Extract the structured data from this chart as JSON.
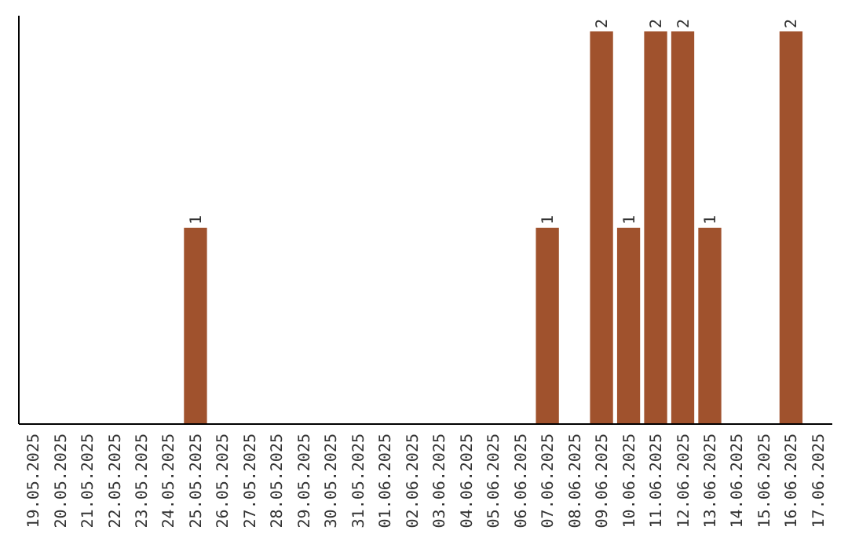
{
  "chart_data": {
    "type": "bar",
    "categories": [
      "19.05.2025",
      "20.05.2025",
      "21.05.2025",
      "22.05.2025",
      "23.05.2025",
      "24.05.2025",
      "25.05.2025",
      "26.05.2025",
      "27.05.2025",
      "28.05.2025",
      "29.05.2025",
      "30.05.2025",
      "31.05.2025",
      "01.06.2025",
      "02.06.2025",
      "03.06.2025",
      "04.06.2025",
      "05.06.2025",
      "06.06.2025",
      "07.06.2025",
      "08.06.2025",
      "09.06.2025",
      "10.06.2025",
      "11.06.2025",
      "12.06.2025",
      "13.06.2025",
      "14.06.2025",
      "15.06.2025",
      "16.06.2025",
      "17.06.2025"
    ],
    "values": [
      0,
      0,
      0,
      0,
      0,
      0,
      1,
      0,
      0,
      0,
      0,
      0,
      0,
      0,
      0,
      0,
      0,
      0,
      0,
      1,
      0,
      2,
      1,
      2,
      2,
      1,
      0,
      0,
      2,
      0
    ],
    "value_labels": [
      null,
      null,
      null,
      null,
      null,
      null,
      "1",
      null,
      null,
      null,
      null,
      null,
      null,
      null,
      null,
      null,
      null,
      null,
      null,
      "1",
      null,
      "2",
      "1",
      "2",
      "2",
      "1",
      null,
      null,
      "2",
      null
    ],
    "color": "#a0522d",
    "ylim": [
      0,
      2
    ],
    "tick_labels": "x"
  }
}
